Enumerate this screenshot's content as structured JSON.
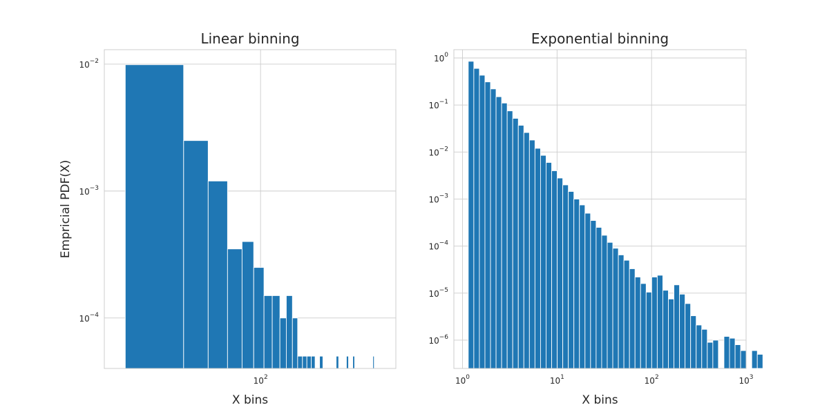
{
  "chart_data": [
    {
      "type": "bar",
      "title": "Linear binning",
      "xlabel": "X bins",
      "ylabel": "Empricial PDF(X)",
      "x_scale": "log",
      "y_scale": "log",
      "xlim": [
        7,
        1000
      ],
      "ylim": [
        4e-05,
        0.013
      ],
      "grid": true,
      "x_ticks": [
        {
          "value": 100,
          "label": "10",
          "exp": "2"
        }
      ],
      "y_ticks": [
        {
          "value": 0.01,
          "label": "10",
          "exp": "−2"
        },
        {
          "value": 0.001,
          "label": "10",
          "exp": "−3"
        },
        {
          "value": 0.0001,
          "label": "10",
          "exp": "−4"
        }
      ],
      "bars": [
        {
          "x0": 10,
          "x1": 27,
          "y": 0.0099
        },
        {
          "x0": 27,
          "x1": 41,
          "y": 0.0025
        },
        {
          "x0": 41,
          "x1": 57,
          "y": 0.0012
        },
        {
          "x0": 57,
          "x1": 73,
          "y": 0.00035
        },
        {
          "x0": 73,
          "x1": 89,
          "y": 0.0004
        },
        {
          "x0": 89,
          "x1": 106,
          "y": 0.00025
        },
        {
          "x0": 106,
          "x1": 122,
          "y": 0.00015
        },
        {
          "x0": 122,
          "x1": 139,
          "y": 0.00015
        },
        {
          "x0": 139,
          "x1": 155,
          "y": 0.0001
        },
        {
          "x0": 155,
          "x1": 172,
          "y": 0.00015
        },
        {
          "x0": 172,
          "x1": 188,
          "y": 0.0001
        },
        {
          "x0": 188,
          "x1": 204,
          "y": 5e-05
        },
        {
          "x0": 204,
          "x1": 220,
          "y": 5e-05
        },
        {
          "x0": 220,
          "x1": 237,
          "y": 5e-05
        },
        {
          "x0": 237,
          "x1": 253,
          "y": 5e-05
        },
        {
          "x0": 273,
          "x1": 289,
          "y": 5e-05
        },
        {
          "x0": 362,
          "x1": 378,
          "y": 5e-05
        },
        {
          "x0": 431,
          "x1": 447,
          "y": 5e-05
        },
        {
          "x0": 480,
          "x1": 496,
          "y": 5e-05
        },
        {
          "x0": 676,
          "x1": 692,
          "y": 5e-05
        }
      ]
    },
    {
      "type": "bar",
      "title": "Exponential binning",
      "xlabel": "X bins",
      "ylabel": "",
      "x_scale": "log",
      "y_scale": "log",
      "xlim": [
        0.81,
        1000
      ],
      "ylim": [
        2.5e-07,
        1.5
      ],
      "grid": true,
      "x_ticks": [
        {
          "value": 1,
          "label": "10",
          "exp": "0"
        },
        {
          "value": 10,
          "label": "10",
          "exp": "1"
        },
        {
          "value": 100,
          "label": "10",
          "exp": "2"
        },
        {
          "value": 1000,
          "label": "10",
          "exp": "3"
        }
      ],
      "y_ticks": [
        {
          "value": 1,
          "label": "10",
          "exp": "0"
        },
        {
          "value": 0.1,
          "label": "10",
          "exp": "−1"
        },
        {
          "value": 0.01,
          "label": "10",
          "exp": "−2"
        },
        {
          "value": 0.001,
          "label": "10",
          "exp": "−3"
        },
        {
          "value": 0.0001,
          "label": "10",
          "exp": "−4"
        },
        {
          "value": 1e-05,
          "label": "10",
          "exp": "−5"
        },
        {
          "value": 1e-06,
          "label": "10",
          "exp": "−6"
        }
      ],
      "bin_start": 1.15,
      "bin_ratio": 1.145,
      "values": [
        0.85,
        0.6,
        0.43,
        0.31,
        0.22,
        0.15,
        0.11,
        0.075,
        0.052,
        0.037,
        0.026,
        0.018,
        0.012,
        0.0085,
        0.006,
        0.004,
        0.0028,
        0.002,
        0.00145,
        0.001,
        0.00075,
        0.0005,
        0.00035,
        0.00025,
        0.00017,
        0.00012,
        9e-05,
        6.5e-05,
        5e-05,
        3.3e-05,
        2.2e-05,
        1.6e-05,
        1.05e-05,
        2.2e-05,
        2.4e-05,
        1.15e-05,
        7.5e-06,
        1.5e-05,
        9.5e-06,
        6e-06,
        3.3e-06,
        2.1e-06,
        1.7e-06,
        9e-07,
        1e-06,
        0,
        1.2e-06,
        1.1e-06,
        8e-07,
        6e-07,
        0,
        6e-07,
        5e-07
      ]
    }
  ]
}
